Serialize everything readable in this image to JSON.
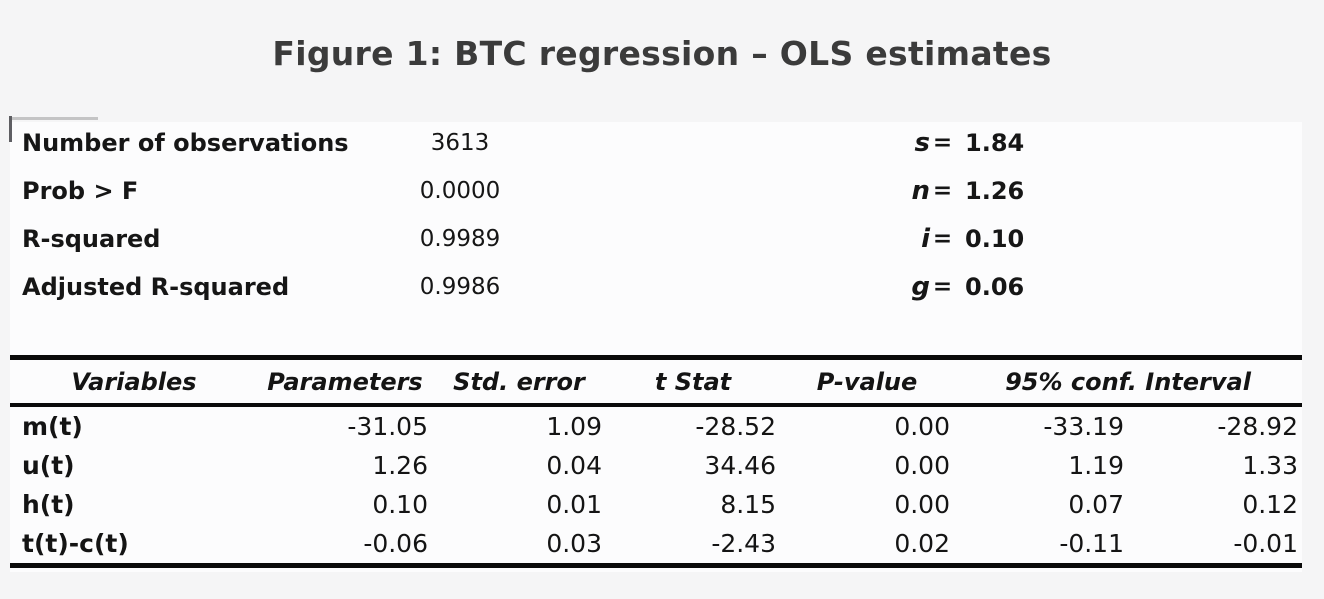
{
  "title": "Figure 1: BTC regression – OLS estimates",
  "summary": {
    "equals_sign": "=",
    "rows": [
      {
        "label": "Number of observations",
        "value": "3613",
        "param": "s",
        "param_value": "1.84"
      },
      {
        "label": "Prob > F",
        "value": "0.0000",
        "param": "n",
        "param_value": "1.26"
      },
      {
        "label": "R-squared",
        "value": "0.9989",
        "param": "i",
        "param_value": "0.10"
      },
      {
        "label": "Adjusted R-squared",
        "value": "0.9986",
        "param": "g",
        "param_value": "0.06"
      }
    ]
  },
  "table": {
    "headers": [
      "Variables",
      "Parameters",
      "Std. error",
      "t Stat",
      "P-value",
      "95% conf. Interval"
    ],
    "rows": [
      {
        "variable": "m(t)",
        "values": [
          "-31.05",
          "1.09",
          "-28.52",
          "0.00",
          "-33.19",
          "-28.92"
        ]
      },
      {
        "variable": "u(t)",
        "values": [
          "1.26",
          "0.04",
          "34.46",
          "0.00",
          "1.19",
          "1.33"
        ]
      },
      {
        "variable": "h(t)",
        "values": [
          "0.10",
          "0.01",
          "8.15",
          "0.00",
          "0.07",
          "0.12"
        ]
      },
      {
        "variable": "t(t)-c(t)",
        "values": [
          "-0.06",
          "0.03",
          "-2.43",
          "0.02",
          "-0.11",
          "-0.01"
        ]
      }
    ]
  },
  "chart_data": {
    "type": "table",
    "title": "Figure 1: BTC regression – OLS estimates",
    "summary_stats": {
      "Number of observations": 3613,
      "Prob > F": 0.0,
      "R-squared": 0.9989,
      "Adjusted R-squared": 0.9986,
      "s": 1.84,
      "n": 1.26,
      "i": 0.1,
      "g": 0.06
    },
    "columns": [
      "Variables",
      "Parameters",
      "Std. error",
      "t Stat",
      "P-value",
      "95% conf. lower",
      "95% conf. upper"
    ],
    "rows": [
      [
        "m(t)",
        -31.05,
        1.09,
        -28.52,
        0.0,
        -33.19,
        -28.92
      ],
      [
        "u(t)",
        1.26,
        0.04,
        34.46,
        0.0,
        1.19,
        1.33
      ],
      [
        "h(t)",
        0.1,
        0.01,
        8.15,
        0.0,
        0.07,
        0.12
      ],
      [
        "t(t)-c(t)",
        -0.06,
        0.03,
        -2.43,
        0.02,
        -0.11,
        -0.01
      ]
    ]
  },
  "colors": {
    "page_background": "#f5f5f6",
    "panel_background": "#fcfcfd",
    "title_text": "#3b3b3b",
    "body_text": "#141414",
    "rule_lines": "#0a0a0a"
  }
}
